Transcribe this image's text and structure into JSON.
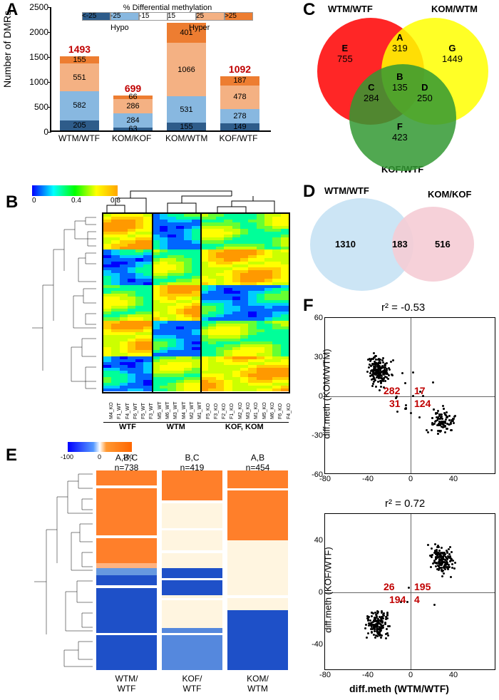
{
  "panelA": {
    "label": "A",
    "ylabel": "Number of DMRs",
    "ylim": [
      0,
      2500
    ],
    "ytick_step": 500,
    "legend": {
      "title": "% Differential methylation",
      "segments": [
        {
          "label": "<-25",
          "color": "#2e5c8a"
        },
        {
          "label": "-25",
          "color": "#88b8e0"
        },
        {
          "label": "-15",
          "color": "#ffffff"
        },
        {
          "label": "15",
          "color": "#ffffff"
        },
        {
          "label": "25",
          "color": "#f4b183"
        },
        {
          "label": ">25",
          "color": "#ed7d31"
        }
      ],
      "sublabels": [
        "Hypo",
        "Hyper"
      ]
    },
    "categories": [
      "WTM/WTF",
      "KOM/KOF",
      "KOM/WTM",
      "KOF/WTF"
    ],
    "bars": [
      {
        "total": 1493,
        "segments": [
          {
            "v": 205,
            "c": "#2e5c8a"
          },
          {
            "v": 582,
            "c": "#88b8e0"
          },
          {
            "v": 551,
            "c": "#f4b183"
          },
          {
            "v": 155,
            "c": "#ed7d31"
          }
        ]
      },
      {
        "total": 699,
        "segments": [
          {
            "v": 63,
            "c": "#2e5c8a"
          },
          {
            "v": 284,
            "c": "#88b8e0"
          },
          {
            "v": 286,
            "c": "#f4b183"
          },
          {
            "v": 66,
            "c": "#ed7d31"
          }
        ]
      },
      {
        "total": 2153,
        "segments": [
          {
            "v": 155,
            "c": "#2e5c8a"
          },
          {
            "v": 531,
            "c": "#88b8e0"
          },
          {
            "v": 1066,
            "c": "#f4b183"
          },
          {
            "v": 401,
            "c": "#ed7d31"
          }
        ]
      },
      {
        "total": 1092,
        "segments": [
          {
            "v": 149,
            "c": "#2e5c8a"
          },
          {
            "v": 278,
            "c": "#88b8e0"
          },
          {
            "v": 478,
            "c": "#f4b183"
          },
          {
            "v": 187,
            "c": "#ed7d31"
          }
        ]
      }
    ]
  },
  "panelB": {
    "label": "B",
    "colorbar": {
      "min": 0,
      "mid": 0.4,
      "max": 0.8
    },
    "samples": [
      "M4_KO",
      "F1_WT",
      "F4_WT",
      "F6_WT",
      "F5_WT",
      "F3_WT",
      "M5_WT",
      "M6_WT",
      "M3_WT",
      "M4_WT",
      "M2_WT",
      "M1_WT",
      "F5_KO",
      "F3_KO",
      "F2_KO",
      "F1_KO",
      "M2_KO",
      "M3_KO",
      "M1_KO",
      "M5_KO",
      "M6_KO",
      "F6_KO",
      "F4_KO"
    ],
    "groups": [
      {
        "label": "WTF",
        "start": 0,
        "end": 6
      },
      {
        "label": "WTM",
        "start": 6,
        "end": 12
      },
      {
        "label": "KOF, KOM",
        "start": 12,
        "end": 23
      }
    ]
  },
  "panelC": {
    "label": "C",
    "sets": [
      {
        "name": "WTM/WTF",
        "color": "#ff0000"
      },
      {
        "name": "KOM/WTM",
        "color": "#ffff00"
      },
      {
        "name": "KOF/WTF",
        "color": "#339933"
      }
    ],
    "regions": {
      "E": 755,
      "A": 319,
      "G": 1449,
      "C": 284,
      "B": 135,
      "D": 250,
      "F": 423
    }
  },
  "panelD": {
    "label": "D",
    "sets": [
      {
        "name": "WTM/WTF",
        "color": "#cce5f5",
        "only": 1310
      },
      {
        "name": "KOM/KOF",
        "color": "#f5ccd5",
        "only": 516
      }
    ],
    "overlap": 183
  },
  "panelE": {
    "label": "E",
    "colorbar": {
      "min": -100,
      "mid": 0,
      "max": 100,
      "colors": [
        "#0000ff",
        "#ffffff",
        "#ff6600"
      ]
    },
    "columns": [
      {
        "header": "A,B,C",
        "n": "n=738",
        "footer": "WTM/\nWTF"
      },
      {
        "header": "B,C",
        "n": "n=419",
        "footer": "KOF/\nWTF"
      },
      {
        "header": "A,B",
        "n": "n=454",
        "footer": "KOM/\nWTM"
      }
    ]
  },
  "panelF": {
    "label": "F",
    "xlabel": "diff.meth (WTM/WTF)",
    "plots": [
      {
        "ylabel": "diff.meth (KOM/WTM)",
        "r2": "r² = -0.53",
        "xlim": [
          -80,
          80
        ],
        "xticks": [
          -80,
          -40,
          0,
          40
        ],
        "ylim": [
          -60,
          60
        ],
        "yticks": [
          -60,
          -30,
          0,
          30,
          60
        ],
        "quadrants": {
          "q2": 282,
          "q1": 17,
          "q3": 31,
          "q4": 124
        }
      },
      {
        "ylabel": "diff.meth (KOF/WTF)",
        "r2": "r² = 0.72",
        "xlim": [
          -80,
          80
        ],
        "xticks": [
          -80,
          -40,
          0,
          40
        ],
        "ylim": [
          -60,
          60
        ],
        "yticks": [
          -40,
          0,
          40
        ],
        "quadrants": {
          "q2": 26,
          "q1": 195,
          "q3": 194,
          "q4": 4
        }
      }
    ]
  }
}
